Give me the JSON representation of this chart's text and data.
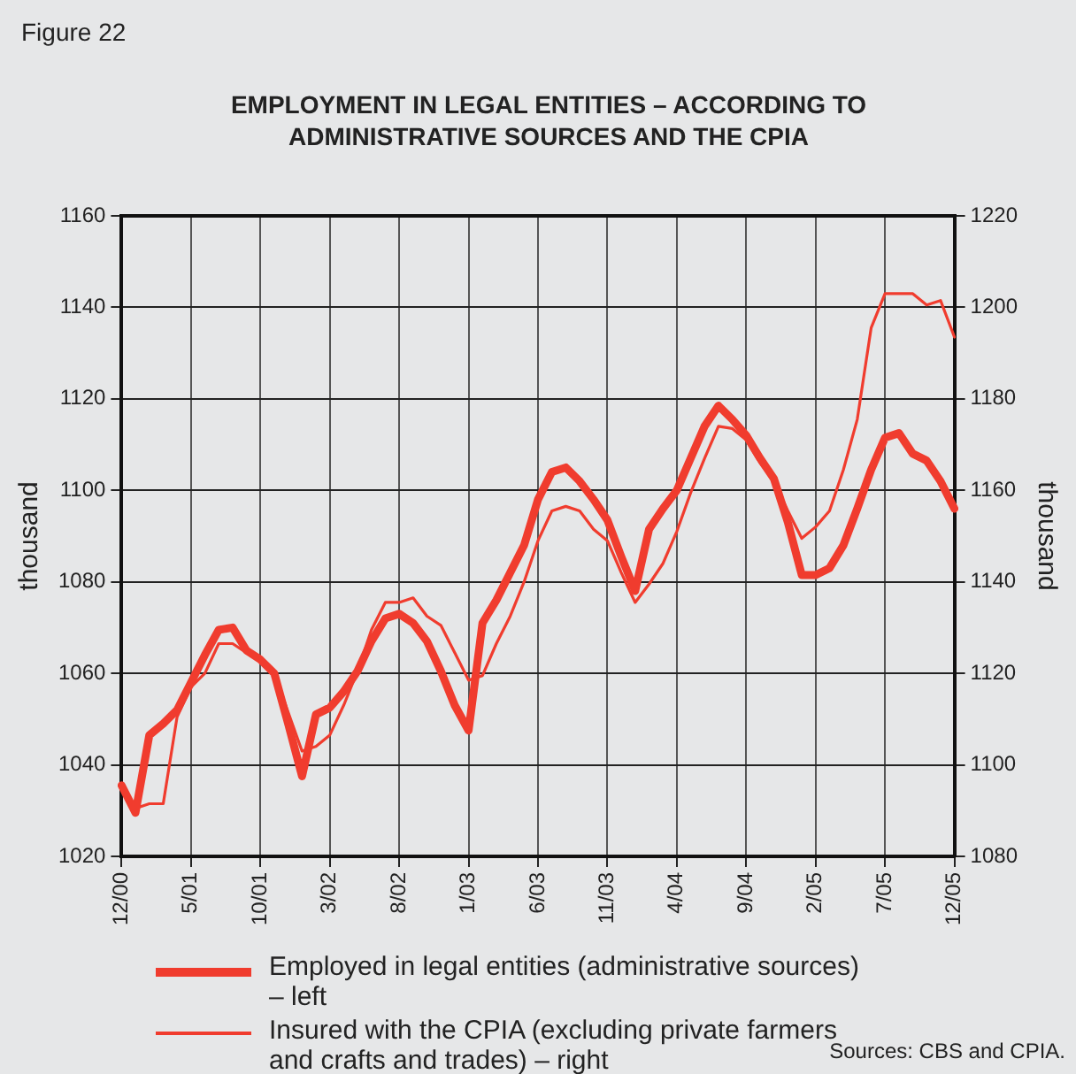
{
  "chart_data": {
    "type": "line",
    "title": "EMPLOYMENT IN LEGAL ENTITIES – ACCORDING TO ADMINISTRATIVE SOURCES AND THE CPIA",
    "ylabel": "thousand",
    "y2label": "thousand",
    "annotations": [
      "Figure 22",
      "Sources: CBS and CPIA."
    ],
    "categories": [
      "12/00",
      null,
      null,
      null,
      null,
      "5/01",
      null,
      null,
      null,
      null,
      "10/01",
      null,
      null,
      null,
      null,
      "3/02",
      null,
      null,
      null,
      null,
      "8/02",
      null,
      null,
      null,
      null,
      "1/03",
      null,
      null,
      null,
      null,
      "6/03",
      null,
      null,
      null,
      null,
      "11/03",
      null,
      null,
      null,
      null,
      "4/04",
      null,
      null,
      null,
      null,
      "9/04",
      null,
      null,
      null,
      null,
      "2/05",
      null,
      null,
      null,
      null,
      "7/05",
      null,
      null,
      null,
      null,
      "12/05"
    ],
    "series": [
      {
        "name": "Employed in legal entities (administrative sources) – left",
        "color": "#f03c2e",
        "values": [
          1035.5,
          1029.5,
          1046.5,
          1049,
          1052,
          1058,
          1064,
          1069.5,
          1070,
          1065,
          1063,
          1060,
          1049,
          1037.5,
          1051,
          1052.5,
          1056,
          1060.5,
          1067,
          1072,
          1073,
          1071,
          1067,
          1060.5,
          1053,
          1047.5,
          1071,
          1076,
          1082,
          1088,
          1098,
          1104,
          1105,
          1102,
          1098,
          1093.5,
          1085.5,
          1078,
          1091.5,
          1096,
          1100,
          1107,
          1114,
          1118.5,
          1115.5,
          1112,
          1107,
          1102.5,
          1093,
          1081.5,
          1081.5,
          1083,
          1088,
          1096,
          1104.5,
          1111.5,
          1112.5,
          1108,
          1106.5,
          1102,
          1096
        ]
      },
      {
        "name": "Insured with the CPIA (excluding private farmers and crafts and trades) – right",
        "color": "#f03c2e",
        "axis": "y2",
        "values": [
          1095.5,
          1090.5,
          1091.5,
          1091.5,
          1110.5,
          1117,
          1120,
          1126.5,
          1126.5,
          1124.5,
          1123,
          1120,
          1111.5,
          1103,
          1104,
          1106.5,
          1113,
          1120.5,
          1129.5,
          1135.5,
          1135.5,
          1136.5,
          1132.5,
          1130.5,
          1124.5,
          1118.5,
          1119.5,
          1126.5,
          1132.5,
          1140,
          1149,
          1155.5,
          1156.5,
          1155.5,
          1151.5,
          1149,
          1142,
          1135.5,
          1139.5,
          1144,
          1151,
          1159.5,
          1167,
          1174,
          1173.5,
          1171,
          1166,
          1162,
          1155.5,
          1149.5,
          1152,
          1155.5,
          1164.5,
          1175.5,
          1195.5,
          1203,
          1203,
          1203,
          1200.5,
          1201.5,
          1193.5
        ]
      }
    ],
    "ylim": [
      1020,
      1160
    ],
    "yticks": [
      1020,
      1040,
      1060,
      1080,
      1100,
      1120,
      1140,
      1160
    ],
    "y2lim": [
      1080,
      1220
    ],
    "y2ticks": [
      1080,
      1100,
      1120,
      1140,
      1160,
      1180,
      1200,
      1220
    ],
    "grid": true,
    "legend": "bottom",
    "marker": "none",
    "line_style": "solid"
  }
}
